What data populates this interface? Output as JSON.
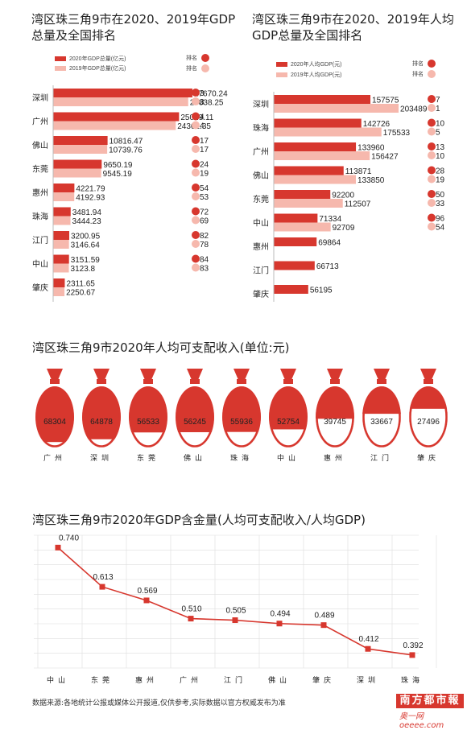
{
  "colors": {
    "red": "#d7372e",
    "pink": "#f6b8ad",
    "line": "#d7372e",
    "grid": "#dddddd"
  },
  "chart1": {
    "title_line1": "湾区珠三角9市在2020、2019年GDP",
    "title_line2": "总量及全国排名",
    "legend_2020": "2020年GDP总量(亿元)",
    "legend_2019": "2019年GDP总量(亿元)",
    "rank_label": "排名"
  },
  "chart2": {
    "title_line1": "湾区珠三角9市在2020、2019年人均",
    "title_line2": "GDP总量及全国排名",
    "legend_2020": "2020年人均GDP(元)",
    "legend_2019": "2019年人均GDP(元)",
    "rank_label": "排名"
  },
  "chart3": {
    "title": "湾区珠三角9市2020年人均可支配收入(单位:元)"
  },
  "chart4": {
    "title": "湾区珠三角9市2020年GDP含金量(人均可支配收入/人均GDP)"
  },
  "footer": "数据来源:各地统计公报或媒体公开报道,仅供参考,实际数据以官方权威发布为准",
  "logo_main": "南方都市報",
  "logo_sub": "奥一网oeeee.com",
  "chart_data": [
    {
      "type": "bar",
      "title": "湾区珠三角9市在2020、2019年GDP总量及全国排名",
      "categories": [
        "深圳",
        "广州",
        "佛山",
        "东莞",
        "惠州",
        "珠海",
        "江门",
        "中山",
        "肇庆"
      ],
      "series": [
        {
          "name": "2020年GDP总量(亿元)",
          "values": [
            27670.24,
            25019.11,
            10816.47,
            9650.19,
            4221.79,
            3481.94,
            3200.95,
            3151.59,
            2311.65
          ],
          "ranks": [
            "3",
            "4",
            "17",
            "24",
            "54",
            "72",
            "82",
            "84",
            ""
          ]
        },
        {
          "name": "2019年GDP总量(亿元)",
          "values": [
            26838.25,
            24361.35,
            10739.76,
            9545.19,
            4192.93,
            3444.23,
            3146.64,
            3123.8,
            2250.67
          ],
          "ranks": [
            "3",
            "4",
            "17",
            "19",
            "53",
            "69",
            "78",
            "83",
            ""
          ]
        }
      ],
      "xlim": [
        0,
        28000
      ]
    },
    {
      "type": "bar",
      "title": "湾区珠三角9市在2020、2019年人均GDP总量及全国排名",
      "categories": [
        "深圳",
        "珠海",
        "广州",
        "佛山",
        "东莞",
        "中山",
        "惠州",
        "江门",
        "肇庆"
      ],
      "series": [
        {
          "name": "2020年人均GDP(元)",
          "values": [
            157575,
            142726,
            133960,
            113871,
            92200,
            71334,
            69864,
            66713,
            56195
          ],
          "ranks": [
            "7",
            "10",
            "13",
            "28",
            "50",
            "96",
            "",
            "",
            ""
          ]
        },
        {
          "name": "2019年人均GDP(元)",
          "values": [
            203489,
            175533,
            156427,
            133850,
            112507,
            92709,
            null,
            null,
            null
          ],
          "ranks": [
            "1",
            "5",
            "10",
            "19",
            "33",
            "54",
            "",
            "",
            ""
          ]
        }
      ],
      "xlim": [
        0,
        210000
      ]
    },
    {
      "type": "bar",
      "title": "湾区珠三角9市2020年人均可支配收入(单位:元)",
      "categories": [
        "广州",
        "深圳",
        "东莞",
        "佛山",
        "珠海",
        "中山",
        "惠州",
        "江门",
        "肇庆"
      ],
      "values": [
        68304,
        64878,
        56533,
        56245,
        55936,
        52754,
        39745,
        33667,
        27496
      ]
    },
    {
      "type": "line",
      "title": "湾区珠三角9市2020年GDP含金量(人均可支配收入/人均GDP)",
      "categories": [
        "中山",
        "东莞",
        "惠州",
        "广州",
        "江门",
        "佛山",
        "肇庆",
        "深圳",
        "珠海"
      ],
      "values": [
        0.74,
        0.613,
        0.569,
        0.51,
        0.505,
        0.494,
        0.489,
        0.412,
        0.392
      ],
      "labels": [
        "0.740",
        "0.613",
        "0.569",
        "0.510",
        "0.505",
        "0.494",
        "0.489",
        "0.412",
        "0.392"
      ],
      "ylim": [
        0.35,
        0.78
      ]
    }
  ]
}
